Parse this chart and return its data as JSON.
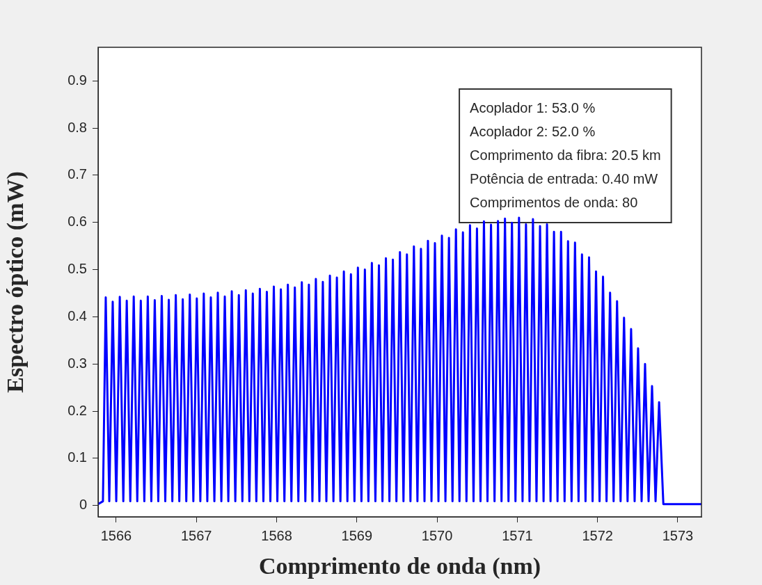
{
  "chart_data": {
    "type": "line",
    "xlabel": "Comprimento de onda (nm)",
    "ylabel": "Espectro óptico (mW)",
    "annotations": [
      "Acoplador 1: 53.0 %",
      "Acoplador 2: 52.0 %",
      "Comprimento da fibra: 20.5 km",
      "Potência de entrada: 0.40 mW",
      "Comprimentos de onda: 80"
    ],
    "xlim": [
      1565.775,
      1573.295
    ],
    "ylim": [
      -0.024,
      0.971
    ],
    "xticks": [
      1566,
      1567,
      1568,
      1569,
      1570,
      1571,
      1572,
      1573
    ],
    "yticks": [
      0,
      0.1,
      0.2,
      0.3,
      0.4,
      0.5,
      0.6,
      0.7,
      0.8,
      0.9
    ],
    "marker": "none",
    "x": [
      1565.775,
      1565.835,
      1565.87,
      1565.914,
      1565.957,
      1566.001,
      1566.045,
      1566.089,
      1566.132,
      1566.176,
      1566.219,
      1566.263,
      1566.307,
      1566.351,
      1566.394,
      1566.438,
      1566.481,
      1566.525,
      1566.568,
      1566.612,
      1566.656,
      1566.7,
      1566.743,
      1566.787,
      1566.83,
      1566.874,
      1566.918,
      1566.962,
      1567.005,
      1567.049,
      1567.092,
      1567.136,
      1567.18,
      1567.224,
      1567.267,
      1567.311,
      1567.354,
      1567.398,
      1567.441,
      1567.485,
      1567.529,
      1567.573,
      1567.616,
      1567.66,
      1567.703,
      1567.747,
      1567.791,
      1567.835,
      1567.878,
      1567.922,
      1567.965,
      1568.009,
      1568.053,
      1568.097,
      1568.14,
      1568.184,
      1568.227,
      1568.271,
      1568.314,
      1568.358,
      1568.402,
      1568.446,
      1568.489,
      1568.533,
      1568.576,
      1568.62,
      1568.664,
      1568.708,
      1568.751,
      1568.795,
      1568.838,
      1568.882,
      1568.926,
      1568.97,
      1569.013,
      1569.057,
      1569.1,
      1569.144,
      1569.187,
      1569.231,
      1569.275,
      1569.319,
      1569.362,
      1569.406,
      1569.449,
      1569.493,
      1569.537,
      1569.581,
      1569.624,
      1569.668,
      1569.711,
      1569.755,
      1569.799,
      1569.843,
      1569.886,
      1569.93,
      1569.973,
      1570.017,
      1570.06,
      1570.104,
      1570.148,
      1570.192,
      1570.235,
      1570.279,
      1570.322,
      1570.366,
      1570.41,
      1570.454,
      1570.497,
      1570.541,
      1570.584,
      1570.628,
      1570.672,
      1570.716,
      1570.759,
      1570.803,
      1570.846,
      1570.89,
      1570.933,
      1570.977,
      1571.021,
      1571.065,
      1571.108,
      1571.152,
      1571.195,
      1571.239,
      1571.283,
      1571.327,
      1571.37,
      1571.414,
      1571.457,
      1571.501,
      1571.545,
      1571.589,
      1571.632,
      1571.676,
      1571.719,
      1571.763,
      1571.806,
      1571.85,
      1571.894,
      1571.938,
      1571.981,
      1572.025,
      1572.068,
      1572.112,
      1572.156,
      1572.2,
      1572.243,
      1572.287,
      1572.33,
      1572.374,
      1572.418,
      1572.462,
      1572.505,
      1572.549,
      1572.592,
      1572.636,
      1572.679,
      1572.723,
      1572.767,
      1572.82,
      1573.295
    ],
    "series": [
      {
        "color": "#0000ff",
        "values": [
          0.003,
          0.009,
          0.441,
          0.009,
          0.432,
          0.009,
          0.442,
          0.009,
          0.434,
          0.009,
          0.443,
          0.009,
          0.434,
          0.009,
          0.443,
          0.009,
          0.435,
          0.009,
          0.444,
          0.009,
          0.436,
          0.009,
          0.446,
          0.009,
          0.437,
          0.009,
          0.447,
          0.009,
          0.439,
          0.009,
          0.449,
          0.009,
          0.441,
          0.009,
          0.451,
          0.009,
          0.443,
          0.009,
          0.454,
          0.009,
          0.446,
          0.009,
          0.456,
          0.009,
          0.449,
          0.009,
          0.459,
          0.009,
          0.453,
          0.009,
          0.464,
          0.009,
          0.458,
          0.009,
          0.468,
          0.009,
          0.462,
          0.009,
          0.473,
          0.009,
          0.468,
          0.009,
          0.48,
          0.009,
          0.474,
          0.009,
          0.487,
          0.009,
          0.483,
          0.009,
          0.496,
          0.009,
          0.49,
          0.009,
          0.504,
          0.009,
          0.5,
          0.009,
          0.514,
          0.009,
          0.509,
          0.009,
          0.524,
          0.009,
          0.521,
          0.009,
          0.537,
          0.009,
          0.532,
          0.009,
          0.549,
          0.009,
          0.544,
          0.009,
          0.561,
          0.009,
          0.556,
          0.009,
          0.572,
          0.009,
          0.567,
          0.009,
          0.585,
          0.009,
          0.579,
          0.009,
          0.594,
          0.009,
          0.587,
          0.009,
          0.602,
          0.009,
          0.595,
          0.009,
          0.603,
          0.009,
          0.608,
          0.009,
          0.599,
          0.009,
          0.61,
          0.009,
          0.596,
          0.009,
          0.607,
          0.009,
          0.592,
          0.009,
          0.596,
          0.009,
          0.58,
          0.009,
          0.58,
          0.009,
          0.56,
          0.009,
          0.557,
          0.009,
          0.532,
          0.009,
          0.526,
          0.009,
          0.496,
          0.009,
          0.485,
          0.009,
          0.451,
          0.009,
          0.433,
          0.009,
          0.398,
          0.009,
          0.374,
          0.009,
          0.333,
          0.009,
          0.3,
          0.009,
          0.253,
          0.009,
          0.219,
          0.003,
          0.003
        ]
      }
    ]
  }
}
